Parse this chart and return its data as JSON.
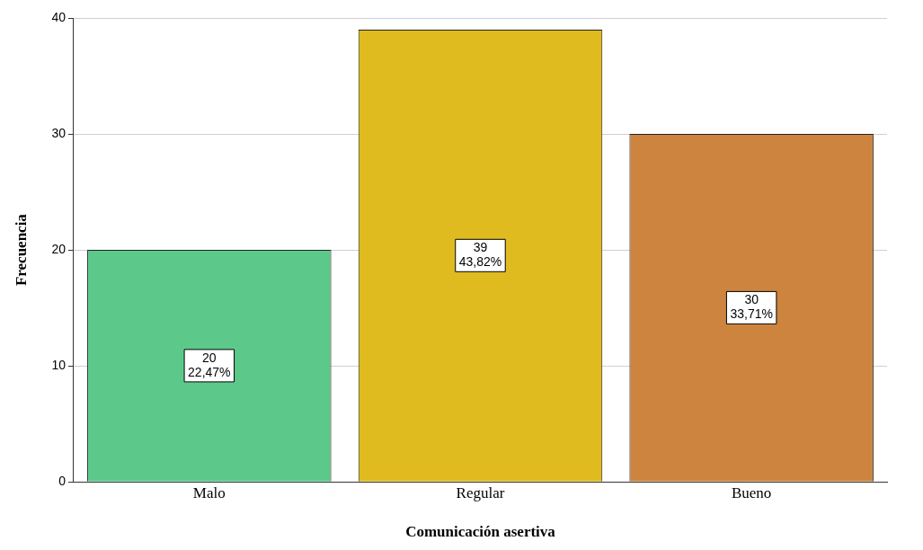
{
  "chart_data": {
    "type": "bar",
    "xlabel": "Comunicación asertiva",
    "ylabel": "Frecuencia",
    "categories": [
      "Malo",
      "Regular",
      "Bueno"
    ],
    "values": [
      20,
      39,
      30
    ],
    "colors": [
      "#5cc98a",
      "#e0bb1f",
      "#cc843f"
    ],
    "value_labels": [
      "20\n22,47%",
      "39\n43,82%",
      "30\n33,71%"
    ],
    "ylim": [
      0,
      40
    ],
    "yticks": [
      0,
      10,
      20,
      30,
      40
    ],
    "grid": "y",
    "legend": false
  }
}
